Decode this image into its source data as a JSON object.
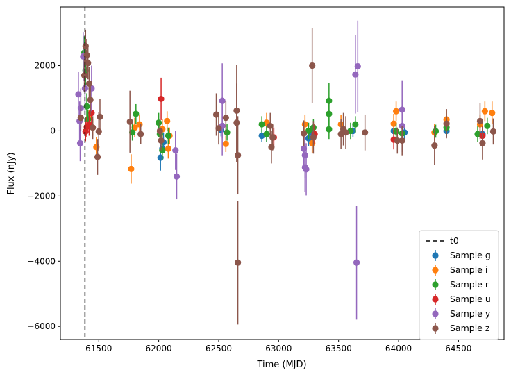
{
  "chart_data": {
    "type": "scatter",
    "title": "",
    "xlabel": "Time (MJD)",
    "ylabel": "Flux (nJy)",
    "xlim": [
      61180,
      64880
    ],
    "ylim": [
      -6400,
      3800
    ],
    "xticks": [
      61500,
      62000,
      62500,
      63000,
      63500,
      64000,
      64500
    ],
    "yticks": [
      -6000,
      -4000,
      -2000,
      0,
      2000
    ],
    "grid": false,
    "legend_position": "lower-right",
    "t0": {
      "label": "t0",
      "x": 61385,
      "style": "dashed",
      "color": "#000000"
    },
    "series": [
      {
        "name": "Sample g",
        "color": "#1f77b4",
        "points": [
          {
            "x": 62015,
            "y": -820,
            "err": 400
          },
          {
            "x": 62030,
            "y": -550,
            "err": 350
          },
          {
            "x": 62040,
            "y": -350,
            "err": 300
          },
          {
            "x": 62520,
            "y": 30,
            "err": 200
          },
          {
            "x": 62860,
            "y": -150,
            "err": 200
          },
          {
            "x": 62900,
            "y": -100,
            "err": 250
          },
          {
            "x": 63250,
            "y": -230,
            "err": 250
          },
          {
            "x": 63270,
            "y": -50,
            "err": 200
          },
          {
            "x": 63620,
            "y": 0,
            "err": 200
          },
          {
            "x": 63960,
            "y": 0,
            "err": 200
          },
          {
            "x": 64050,
            "y": -50,
            "err": 200
          },
          {
            "x": 64400,
            "y": 0,
            "err": 200
          },
          {
            "x": 64700,
            "y": -100,
            "err": 250
          }
        ]
      },
      {
        "name": "Sample i",
        "color": "#ff7f0e",
        "points": [
          {
            "x": 61420,
            "y": 400,
            "err": 250
          },
          {
            "x": 61450,
            "y": 100,
            "err": 250
          },
          {
            "x": 61480,
            "y": -500,
            "err": 300
          },
          {
            "x": 61770,
            "y": -1170,
            "err": 450
          },
          {
            "x": 61800,
            "y": 100,
            "err": 300
          },
          {
            "x": 61840,
            "y": 200,
            "err": 300
          },
          {
            "x": 62030,
            "y": 50,
            "err": 300
          },
          {
            "x": 62070,
            "y": 300,
            "err": 300
          },
          {
            "x": 62080,
            "y": -550,
            "err": 300
          },
          {
            "x": 62090,
            "y": -150,
            "err": 250
          },
          {
            "x": 62560,
            "y": -400,
            "err": 250
          },
          {
            "x": 62900,
            "y": 250,
            "err": 300
          },
          {
            "x": 63220,
            "y": 200,
            "err": 300
          },
          {
            "x": 63280,
            "y": -380,
            "err": 300
          },
          {
            "x": 63520,
            "y": 200,
            "err": 300
          },
          {
            "x": 63960,
            "y": 220,
            "err": 300
          },
          {
            "x": 63980,
            "y": 600,
            "err": 300
          },
          {
            "x": 64300,
            "y": -50,
            "err": 250
          },
          {
            "x": 64400,
            "y": 350,
            "err": 300
          },
          {
            "x": 64680,
            "y": 200,
            "err": 300
          },
          {
            "x": 64720,
            "y": 600,
            "err": 300
          },
          {
            "x": 64780,
            "y": 550,
            "err": 350
          }
        ]
      },
      {
        "name": "Sample r",
        "color": "#2ca02c",
        "points": [
          {
            "x": 61380,
            "y": 2400,
            "err": 500
          },
          {
            "x": 61390,
            "y": 1850,
            "err": 500
          },
          {
            "x": 61400,
            "y": 750,
            "err": 400
          },
          {
            "x": 61410,
            "y": 350,
            "err": 300
          },
          {
            "x": 61780,
            "y": -50,
            "err": 250
          },
          {
            "x": 61810,
            "y": 520,
            "err": 300
          },
          {
            "x": 62000,
            "y": 250,
            "err": 300
          },
          {
            "x": 62010,
            "y": -100,
            "err": 250
          },
          {
            "x": 62030,
            "y": -600,
            "err": 300
          },
          {
            "x": 62080,
            "y": -150,
            "err": 250
          },
          {
            "x": 62570,
            "y": -50,
            "err": 250
          },
          {
            "x": 62860,
            "y": 200,
            "err": 250
          },
          {
            "x": 62900,
            "y": -100,
            "err": 250
          },
          {
            "x": 63250,
            "y": 0,
            "err": 250
          },
          {
            "x": 63290,
            "y": 100,
            "err": 250
          },
          {
            "x": 63420,
            "y": 920,
            "err": 550
          },
          {
            "x": 63420,
            "y": 520,
            "err": 500
          },
          {
            "x": 63420,
            "y": 50,
            "err": 300
          },
          {
            "x": 63600,
            "y": 0,
            "err": 250
          },
          {
            "x": 63640,
            "y": 200,
            "err": 250
          },
          {
            "x": 63980,
            "y": -20,
            "err": 250
          },
          {
            "x": 64030,
            "y": -80,
            "err": 250
          },
          {
            "x": 64310,
            "y": -10,
            "err": 200
          },
          {
            "x": 64400,
            "y": 100,
            "err": 250
          },
          {
            "x": 64660,
            "y": -100,
            "err": 250
          },
          {
            "x": 64740,
            "y": 150,
            "err": 250
          }
        ]
      },
      {
        "name": "Sample u",
        "color": "#d62728",
        "points": [
          {
            "x": 61390,
            "y": -20,
            "err": 300
          },
          {
            "x": 61400,
            "y": 120,
            "err": 300
          },
          {
            "x": 61420,
            "y": 200,
            "err": 350
          },
          {
            "x": 61440,
            "y": 550,
            "err": 400
          },
          {
            "x": 62020,
            "y": 980,
            "err": 650
          },
          {
            "x": 62960,
            "y": -200,
            "err": 300
          },
          {
            "x": 63300,
            "y": -100,
            "err": 300
          },
          {
            "x": 63960,
            "y": -270,
            "err": 300
          },
          {
            "x": 64700,
            "y": -150,
            "err": 300
          }
        ]
      },
      {
        "name": "Sample y",
        "color": "#9467bd",
        "points": [
          {
            "x": 61330,
            "y": 1120,
            "err": 700
          },
          {
            "x": 61340,
            "y": 300,
            "err": 600
          },
          {
            "x": 61345,
            "y": -380,
            "err": 550
          },
          {
            "x": 61350,
            "y": 700,
            "err": 600
          },
          {
            "x": 61370,
            "y": 2280,
            "err": 750
          },
          {
            "x": 61385,
            "y": 1300,
            "err": 700
          },
          {
            "x": 61440,
            "y": 1300,
            "err": 700
          },
          {
            "x": 62140,
            "y": -600,
            "err": 600
          },
          {
            "x": 62150,
            "y": -1400,
            "err": 700
          },
          {
            "x": 62530,
            "y": 920,
            "err": 1150
          },
          {
            "x": 62530,
            "y": 150,
            "err": 900
          },
          {
            "x": 63210,
            "y": -550,
            "err": 700
          },
          {
            "x": 63220,
            "y": -750,
            "err": 700
          },
          {
            "x": 63220,
            "y": -1120,
            "err": 750
          },
          {
            "x": 63230,
            "y": -1180,
            "err": 800
          },
          {
            "x": 63640,
            "y": 1730,
            "err": 1200
          },
          {
            "x": 63650,
            "y": -4040,
            "err": 1750
          },
          {
            "x": 63660,
            "y": 1980,
            "err": 1400
          },
          {
            "x": 64030,
            "y": 650,
            "err": 900
          },
          {
            "x": 64030,
            "y": 150,
            "err": 800
          }
        ]
      },
      {
        "name": "Sample z",
        "color": "#8c564b",
        "points": [
          {
            "x": 61350,
            "y": 400,
            "err": 400
          },
          {
            "x": 61380,
            "y": 1700,
            "err": 500
          },
          {
            "x": 61390,
            "y": 2600,
            "err": 500
          },
          {
            "x": 61400,
            "y": 2320,
            "err": 500
          },
          {
            "x": 61410,
            "y": 2080,
            "err": 500
          },
          {
            "x": 61420,
            "y": 1450,
            "err": 500
          },
          {
            "x": 61430,
            "y": 950,
            "err": 450
          },
          {
            "x": 61450,
            "y": 100,
            "err": 350
          },
          {
            "x": 61490,
            "y": -800,
            "err": 550
          },
          {
            "x": 61500,
            "y": -20,
            "err": 600
          },
          {
            "x": 61510,
            "y": 430,
            "err": 550
          },
          {
            "x": 61760,
            "y": 280,
            "err": 950
          },
          {
            "x": 61850,
            "y": -100,
            "err": 300
          },
          {
            "x": 62010,
            "y": 0,
            "err": 300
          },
          {
            "x": 62020,
            "y": -300,
            "err": 300
          },
          {
            "x": 62480,
            "y": 500,
            "err": 650
          },
          {
            "x": 62500,
            "y": 80,
            "err": 500
          },
          {
            "x": 62560,
            "y": 400,
            "err": 500
          },
          {
            "x": 62650,
            "y": 620,
            "err": 1400
          },
          {
            "x": 62650,
            "y": 250,
            "err": 1200
          },
          {
            "x": 62660,
            "y": -750,
            "err": 1200
          },
          {
            "x": 62660,
            "y": -4040,
            "err": 1900
          },
          {
            "x": 62930,
            "y": 150,
            "err": 400
          },
          {
            "x": 62940,
            "y": -500,
            "err": 500
          },
          {
            "x": 62950,
            "y": -200,
            "err": 400
          },
          {
            "x": 63210,
            "y": -80,
            "err": 400
          },
          {
            "x": 63280,
            "y": 2000,
            "err": 1150
          },
          {
            "x": 63290,
            "y": -200,
            "err": 500
          },
          {
            "x": 63520,
            "y": -100,
            "err": 450
          },
          {
            "x": 63540,
            "y": 50,
            "err": 500
          },
          {
            "x": 63560,
            "y": -50,
            "err": 500
          },
          {
            "x": 63720,
            "y": -50,
            "err": 550
          },
          {
            "x": 63990,
            "y": -300,
            "err": 400
          },
          {
            "x": 64030,
            "y": -300,
            "err": 450
          },
          {
            "x": 64300,
            "y": -450,
            "err": 600
          },
          {
            "x": 64400,
            "y": 220,
            "err": 450
          },
          {
            "x": 64680,
            "y": 300,
            "err": 550
          },
          {
            "x": 64700,
            "y": -380,
            "err": 500
          },
          {
            "x": 64790,
            "y": -20,
            "err": 400
          }
        ]
      }
    ]
  }
}
